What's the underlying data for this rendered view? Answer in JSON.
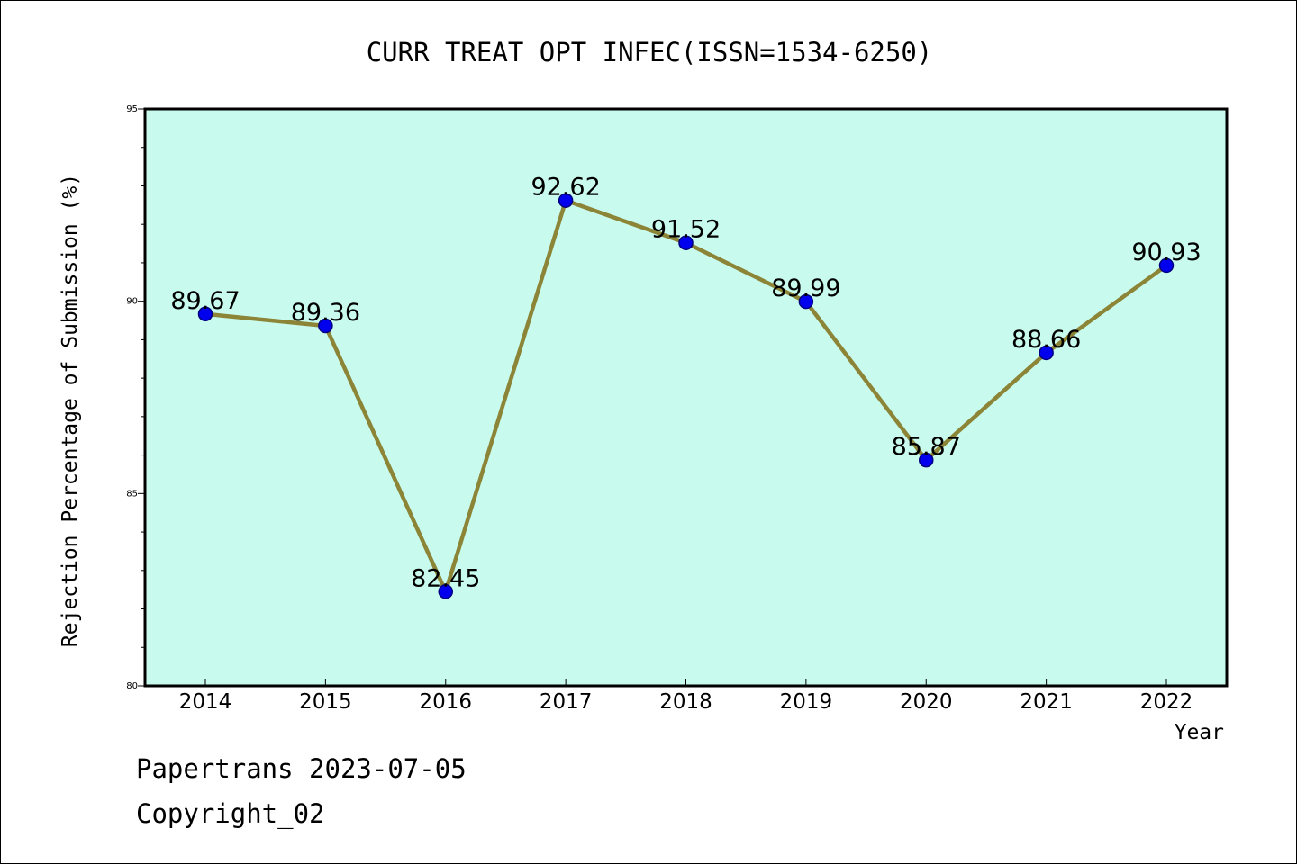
{
  "chart_data": {
    "type": "line",
    "title": "CURR TREAT OPT INFEC(ISSN=1534-6250)",
    "xlabel": "Year",
    "ylabel": "Rejection Percentage of Submission (%)",
    "categories": [
      "2014",
      "2015",
      "2016",
      "2017",
      "2018",
      "2019",
      "2020",
      "2021",
      "2022"
    ],
    "values": [
      89.67,
      89.36,
      82.45,
      92.62,
      91.52,
      89.99,
      85.87,
      88.66,
      90.93
    ],
    "data_labels": [
      "89.67",
      "89.36",
      "82.45",
      "92.62",
      "91.52",
      "89.99",
      "85.87",
      "88.66",
      "90.93"
    ],
    "ylim": [
      80,
      95
    ],
    "yticks": [
      "80",
      "85",
      "90",
      "95"
    ],
    "grid": false,
    "colors": {
      "plot_background": "#c8fbee",
      "line": "#8c8436",
      "marker": "#0000ee",
      "marker_edge": "#000080"
    }
  },
  "footer": {
    "line1": "Papertrans 2023-07-05",
    "line2": "Copyright_02"
  }
}
